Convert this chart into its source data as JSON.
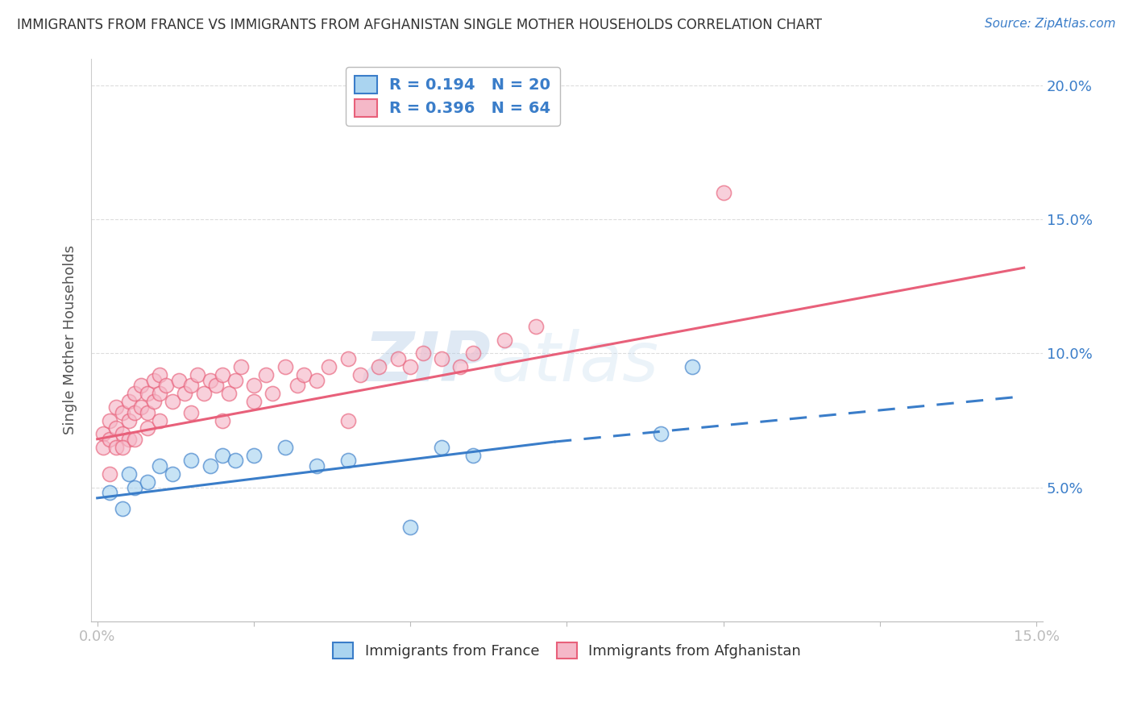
{
  "title": "IMMIGRANTS FROM FRANCE VS IMMIGRANTS FROM AFGHANISTAN SINGLE MOTHER HOUSEHOLDS CORRELATION CHART",
  "source": "Source: ZipAtlas.com",
  "ylabel": "Single Mother Households",
  "xlim": [
    0.0,
    0.15
  ],
  "ylim": [
    0.0,
    0.21
  ],
  "france_R": 0.194,
  "france_N": 20,
  "afghanistan_R": 0.396,
  "afghanistan_N": 64,
  "france_color": "#aad4f0",
  "afghanistan_color": "#f5b8c8",
  "france_line_color": "#3a7dc9",
  "afghanistan_line_color": "#e8607a",
  "france_x": [
    0.002,
    0.004,
    0.005,
    0.006,
    0.008,
    0.01,
    0.012,
    0.015,
    0.018,
    0.02,
    0.022,
    0.025,
    0.03,
    0.035,
    0.04,
    0.05,
    0.055,
    0.06,
    0.09,
    0.095
  ],
  "france_y": [
    0.048,
    0.042,
    0.055,
    0.05,
    0.052,
    0.058,
    0.055,
    0.06,
    0.058,
    0.062,
    0.06,
    0.062,
    0.065,
    0.058,
    0.06,
    0.035,
    0.065,
    0.062,
    0.07,
    0.095
  ],
  "afghanistan_x": [
    0.001,
    0.001,
    0.002,
    0.002,
    0.003,
    0.003,
    0.003,
    0.004,
    0.004,
    0.005,
    0.005,
    0.005,
    0.006,
    0.006,
    0.007,
    0.007,
    0.008,
    0.008,
    0.009,
    0.009,
    0.01,
    0.01,
    0.011,
    0.012,
    0.013,
    0.014,
    0.015,
    0.016,
    0.017,
    0.018,
    0.019,
    0.02,
    0.021,
    0.022,
    0.023,
    0.025,
    0.027,
    0.028,
    0.03,
    0.032,
    0.033,
    0.035,
    0.037,
    0.04,
    0.042,
    0.045,
    0.048,
    0.05,
    0.052,
    0.055,
    0.058,
    0.06,
    0.065,
    0.07,
    0.002,
    0.004,
    0.006,
    0.008,
    0.01,
    0.015,
    0.02,
    0.025,
    0.04,
    0.1
  ],
  "afghanistan_y": [
    0.07,
    0.065,
    0.075,
    0.068,
    0.08,
    0.072,
    0.065,
    0.078,
    0.07,
    0.082,
    0.075,
    0.068,
    0.085,
    0.078,
    0.088,
    0.08,
    0.085,
    0.078,
    0.09,
    0.082,
    0.085,
    0.092,
    0.088,
    0.082,
    0.09,
    0.085,
    0.088,
    0.092,
    0.085,
    0.09,
    0.088,
    0.092,
    0.085,
    0.09,
    0.095,
    0.088,
    0.092,
    0.085,
    0.095,
    0.088,
    0.092,
    0.09,
    0.095,
    0.098,
    0.092,
    0.095,
    0.098,
    0.095,
    0.1,
    0.098,
    0.095,
    0.1,
    0.105,
    0.11,
    0.055,
    0.065,
    0.068,
    0.072,
    0.075,
    0.078,
    0.075,
    0.082,
    0.075,
    0.16
  ],
  "watermark_zip": "ZIP",
  "watermark_atlas": "atlas",
  "background_color": "#ffffff",
  "grid_color": "#dddddd",
  "france_trend_x0": 0.0,
  "france_trend_x1": 0.073,
  "france_trend_x2": 0.148,
  "france_trend_y0": 0.046,
  "france_trend_y1": 0.067,
  "france_trend_y2": 0.084,
  "afghanistan_trend_x0": 0.0,
  "afghanistan_trend_x1": 0.148,
  "afghanistan_trend_y0": 0.068,
  "afghanistan_trend_y1": 0.132
}
